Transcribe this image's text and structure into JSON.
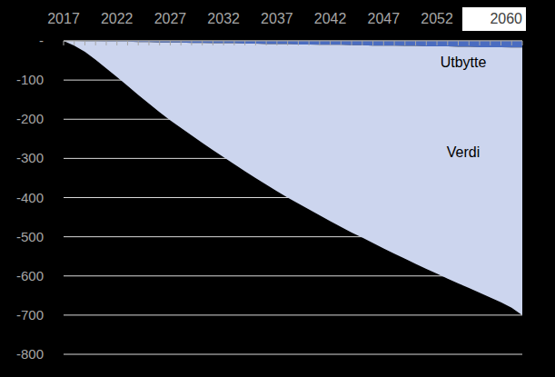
{
  "chart_data": {
    "type": "area",
    "stacked": true,
    "grid": true,
    "x": [
      2017,
      2018,
      2019,
      2020,
      2021,
      2022,
      2023,
      2024,
      2025,
      2026,
      2027,
      2028,
      2029,
      2030,
      2031,
      2032,
      2033,
      2034,
      2035,
      2036,
      2037,
      2038,
      2039,
      2040,
      2041,
      2042,
      2043,
      2044,
      2045,
      2046,
      2047,
      2048,
      2049,
      2050,
      2051,
      2052,
      2053,
      2054,
      2055,
      2056,
      2057,
      2058,
      2059,
      2060
    ],
    "xlim": [
      2017,
      2060
    ],
    "xticks": [
      2017,
      2022,
      2027,
      2032,
      2037,
      2042,
      2047,
      2052,
      2060
    ],
    "ylim": [
      -800,
      0
    ],
    "yticks": [
      {
        "value": 0,
        "label": "-"
      },
      -100,
      -200,
      -300,
      -400,
      -500,
      -600,
      -700,
      -800
    ],
    "series": [
      {
        "name": "Utbytte",
        "color": "#4a6cc0",
        "values": [
          0,
          0,
          -1,
          -1,
          -2,
          -2,
          -2,
          -3,
          -3,
          -4,
          -4,
          -4,
          -5,
          -5,
          -6,
          -6,
          -6,
          -7,
          -7,
          -8,
          -8,
          -8,
          -9,
          -9,
          -10,
          -10,
          -10,
          -11,
          -11,
          -12,
          -12,
          -12,
          -13,
          -13,
          -14,
          -14,
          -14,
          -15,
          -15,
          -16,
          -16,
          -16,
          -17,
          -17
        ]
      },
      {
        "name": "Verdi",
        "color": "#ccd5ee",
        "values": [
          0,
          -12,
          -27,
          -47,
          -68,
          -90,
          -113,
          -135,
          -157,
          -178,
          -199,
          -218,
          -236,
          -255,
          -273,
          -291,
          -309,
          -326,
          -343,
          -359,
          -376,
          -392,
          -406,
          -421,
          -435,
          -450,
          -465,
          -478,
          -491,
          -504,
          -518,
          -531,
          -543,
          -556,
          -568,
          -580,
          -593,
          -604,
          -616,
          -627,
          -639,
          -651,
          -664,
          -683
        ]
      }
    ]
  }
}
